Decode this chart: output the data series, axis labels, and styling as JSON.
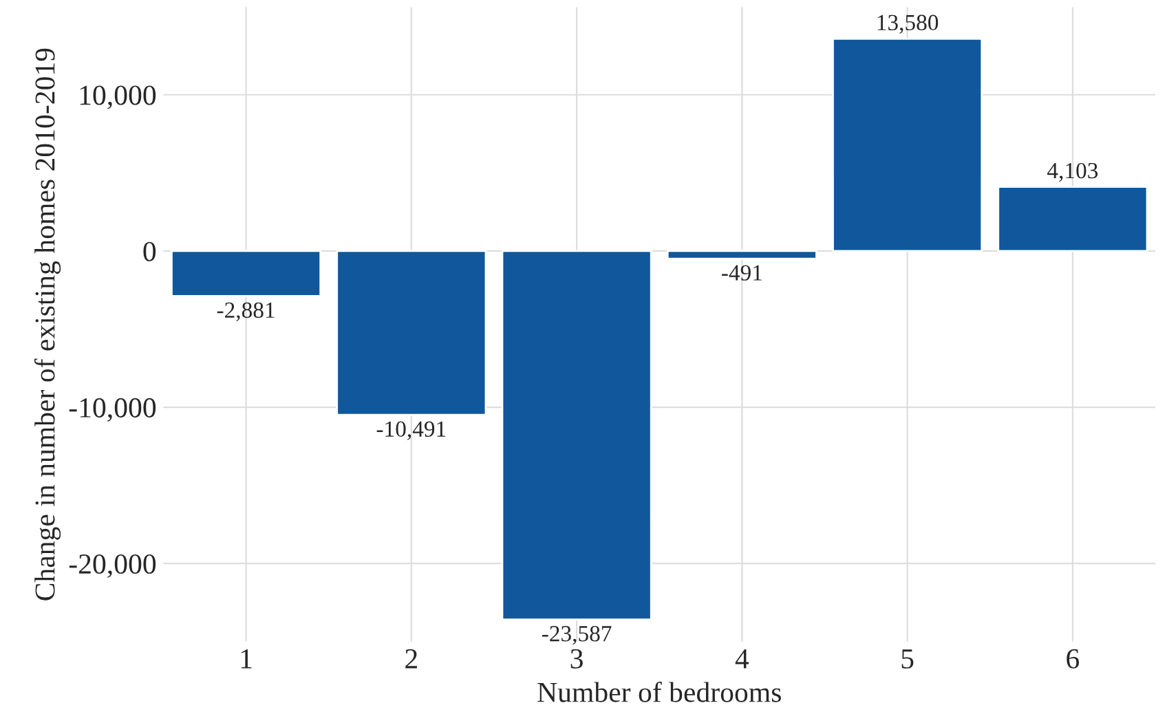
{
  "chart_data": {
    "type": "bar",
    "xlabel": "Number of bedrooms",
    "ylabel": "Change in number of existing homes 2010-2019",
    "categories": [
      "1",
      "2",
      "3",
      "4",
      "5",
      "6"
    ],
    "values": [
      -2881,
      -10491,
      -23587,
      -491,
      13580,
      4103
    ],
    "value_labels": [
      "-2,881",
      "-10,491",
      "-23,587",
      "-491",
      "13,580",
      "4,103"
    ],
    "color": "#11579b",
    "ylim": [
      -25000,
      15600
    ],
    "yticks": [
      {
        "value": -20000,
        "label": "-20,000"
      },
      {
        "value": -10000,
        "label": "-10,000"
      },
      {
        "value": 0,
        "label": "0"
      },
      {
        "value": 10000,
        "label": "10,000"
      }
    ],
    "grid": true
  }
}
